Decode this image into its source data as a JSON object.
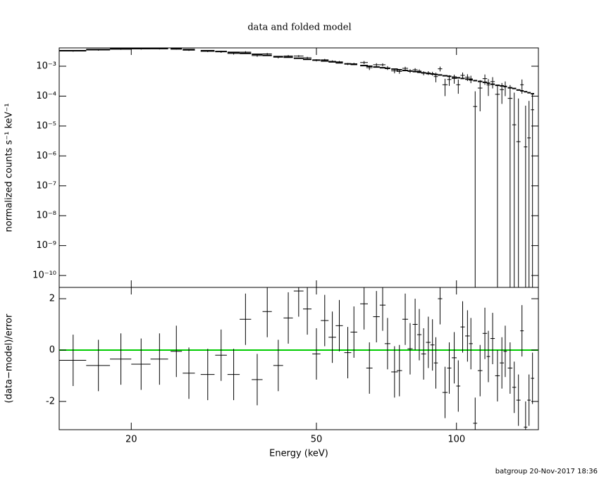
{
  "footer": "batgroup 20-Nov-2017 18:36",
  "chart_data": [
    {
      "type": "scatter",
      "title": "data and folded model",
      "ylabel": "normalized counts s⁻¹ keV⁻¹",
      "log_x": true,
      "log_y": true,
      "color": "#000000",
      "x": [
        15.0,
        17.0,
        19.0,
        21.0,
        23.0,
        25.0,
        26.6,
        29.2,
        31.2,
        33.2,
        35.2,
        37.3,
        39.2,
        41.4,
        43.5,
        45.8,
        47.8,
        50.0,
        52.1,
        54.1,
        56.0,
        58.4,
        60.2,
        63.3,
        65.0,
        67.3,
        69.4,
        71.1,
        73.6,
        75.4,
        77.6,
        79.5,
        81.5,
        83.2,
        85.0,
        87.0,
        88.8,
        90.3,
        92.2,
        94.5,
        96.5,
        98.9,
        100.9,
        103.1,
        105.6,
        107.4,
        109.7,
        112.4,
        115.1,
        117.1,
        119.6,
        122.5,
        125.2,
        127.3,
        130.4,
        133.1,
        135.9,
        138.3,
        140.8,
        143.2,
        145.7
      ],
      "xerr": [
        1.0,
        1.0,
        1.0,
        1.0,
        1.0,
        0.7,
        0.8,
        1.0,
        0.9,
        1.0,
        1.0,
        1.0,
        0.9,
        1.0,
        1.0,
        1.1,
        1.0,
        1.0,
        1.0,
        1.0,
        1.0,
        1.0,
        1.0,
        1.2,
        1.0,
        1.1,
        1.0,
        1.0,
        1.2,
        1.0,
        1.1,
        1.0,
        1.0,
        0.9,
        1.0,
        1.0,
        0.9,
        0.9,
        1.0,
        1.2,
        1.0,
        1.2,
        1.0,
        1.1,
        1.2,
        1.0,
        1.1,
        1.3,
        1.3,
        1.0,
        1.3,
        1.4,
        1.3,
        1.1,
        1.5,
        1.3,
        1.4,
        1.2,
        1.2,
        1.2,
        1.2
      ],
      "values": [
        0.00323,
        0.00349,
        0.00373,
        0.00379,
        0.00383,
        0.00379,
        0.00344,
        0.00314,
        0.00305,
        0.00268,
        0.00296,
        0.00227,
        0.00258,
        0.002,
        0.0022,
        0.00219,
        0.00192,
        0.00158,
        0.00164,
        0.00146,
        0.0014,
        0.00119,
        0.00121,
        0.00133,
        0.000895,
        0.00112,
        0.00112,
        0.00088,
        0.000698,
        0.000669,
        0.00085,
        0.000695,
        0.00076,
        0.000687,
        0.000587,
        0.000596,
        0.000567,
        0.00045,
        0.00082,
        0.00024,
        0.00036,
        0.00039,
        0.00024,
        0.000495,
        0.00043,
        0.000376,
        4.5e-05,
        0.000186,
        0.000384,
        0.000236,
        0.000306,
        0.000115,
        0.000165,
        0.000205,
        8.4e-05,
        1.1e-05,
        3e-06,
        0.00024,
        2e-06,
        4e-06,
        3.5e-05
      ],
      "errors": [
        0.000165,
        0.00018,
        0.00019,
        0.000195,
        0.000195,
        0.00019,
        0.00018,
        0.000165,
        0.00025,
        0.00023,
        0.00022,
        0.0002,
        0.00018,
        0.00017,
        0.00016,
        0.00015,
        0.00014,
        0.00013,
        0.00012,
        0.00011,
        0.0001,
        9.6e-05,
        9.2e-05,
        0.00016,
        0.00015,
        0.00014,
        0.00013,
        0.00013,
        0.00012,
        0.00011,
        0.00011,
        0.0001,
        9.9e-05,
        9.5e-05,
        9e-05,
        8.6e-05,
        8.3e-05,
        0.00016,
        0.00015,
        0.00014,
        0.00014,
        0.00013,
        0.00012,
        0.00012,
        0.00011,
        0.000105,
        0.0001,
        0.000155,
        0.000145,
        0.000135,
        0.000125,
        0.000115,
        0.00011,
        0.000105,
        0.00015,
        0.00012,
        8e-05,
        0.00012,
        4.6e-05,
        6.5e-05,
        8e-05
      ],
      "model": [
        0.0033,
        0.0036,
        0.0038,
        0.0039,
        0.0039,
        0.0038,
        0.0036,
        0.0033,
        0.0031,
        0.0029,
        0.0027,
        0.0025,
        0.0023,
        0.0021,
        0.002,
        0.00185,
        0.0017,
        0.0016,
        0.0015,
        0.0014,
        0.0013,
        0.0012,
        0.00115,
        0.00105,
        0.001,
        0.00094,
        0.00089,
        0.00085,
        0.0008,
        0.00076,
        0.00072,
        0.00069,
        0.00066,
        0.00063,
        0.0006,
        0.00057,
        0.00055,
        0.00053,
        0.00051,
        0.00048,
        0.00046,
        0.00043,
        0.00041,
        0.00039,
        0.00037,
        0.00035,
        0.00033,
        0.00031,
        0.00029,
        0.00027,
        0.00025,
        0.00023,
        0.00022,
        0.00021,
        0.00019,
        0.00018,
        0.00016,
        0.00015,
        0.00014,
        0.00013,
        0.00012
      ],
      "ylim": [
        4e-11,
        0.0041
      ],
      "yticks": [
        {
          "value": 0.001,
          "label": "10⁻³"
        },
        {
          "value": 0.0001,
          "label": "10⁻⁴"
        },
        {
          "value": 1e-05,
          "label": "10⁻⁵"
        },
        {
          "value": 1e-06,
          "label": "10⁻⁶"
        },
        {
          "value": 1e-07,
          "label": "10⁻⁷"
        },
        {
          "value": 1e-08,
          "label": "10⁻⁸"
        },
        {
          "value": 1e-09,
          "label": "10⁻⁹"
        },
        {
          "value": 1e-10,
          "label": "10⁻¹⁰"
        }
      ]
    },
    {
      "type": "residual",
      "ylabel": "(data−model)/error",
      "xlabel": "Energy (keV)",
      "log_x": true,
      "values": [
        -0.4,
        -0.6,
        -0.35,
        -0.55,
        -0.35,
        -0.05,
        -0.9,
        -0.95,
        -0.2,
        -0.95,
        1.2,
        -1.15,
        1.5,
        -0.6,
        1.25,
        2.3,
        1.6,
        -0.15,
        1.15,
        0.5,
        0.95,
        -0.1,
        0.7,
        1.8,
        -0.7,
        1.3,
        1.75,
        0.25,
        -0.85,
        -0.8,
        1.2,
        0.05,
        1.0,
        0.6,
        -0.15,
        0.3,
        0.2,
        -0.5,
        2.0,
        -1.65,
        -0.7,
        -0.3,
        -1.4,
        0.9,
        0.55,
        0.25,
        -2.85,
        -0.8,
        0.65,
        -0.25,
        0.45,
        -1.0,
        -0.5,
        -0.05,
        -0.7,
        -1.45,
        -1.95,
        0.75,
        -3.0,
        -1.95,
        -1.1
      ],
      "error": 1,
      "reference_line": 0,
      "reference_color": "#00cc00",
      "color": "#000000",
      "xlim": [
        14,
        150
      ],
      "xticks": [
        20,
        50,
        100
      ],
      "ylim": [
        -3.1,
        2.44
      ],
      "yticks": [
        -2,
        0,
        2
      ]
    }
  ]
}
